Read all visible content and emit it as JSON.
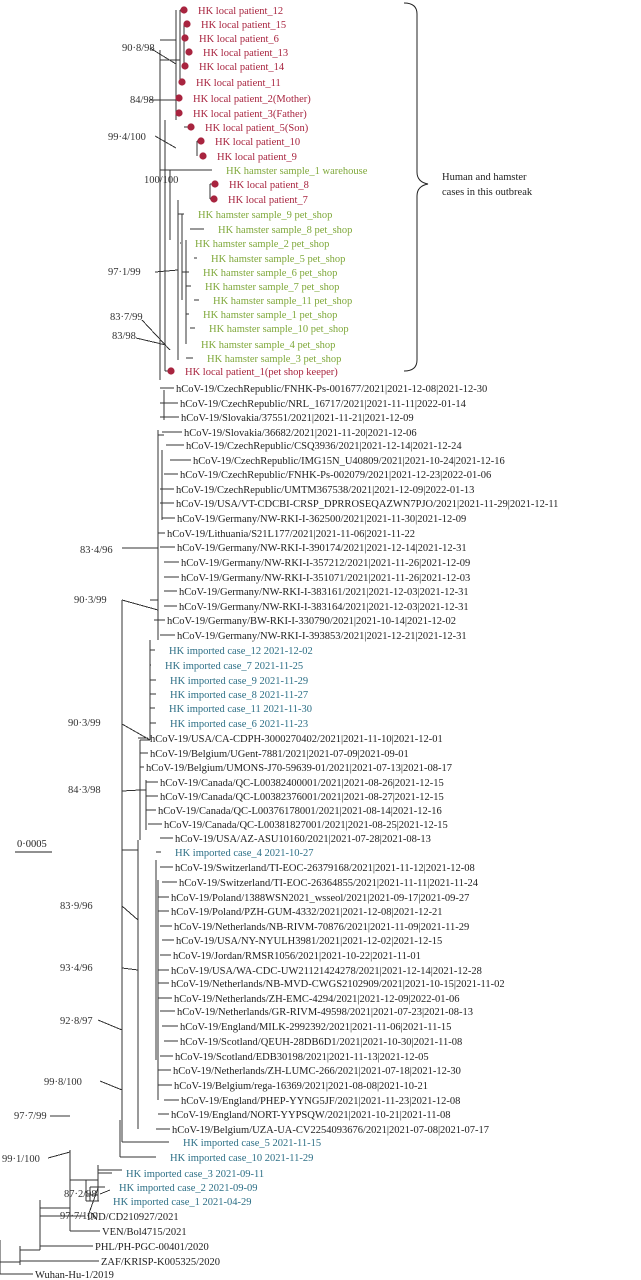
{
  "colors": {
    "patient": "#a8243f",
    "hamster": "#7fa83a",
    "imported": "#2d6f86",
    "reference": "#222222",
    "branch": "#333333"
  },
  "scale_bar_label": "0·0005",
  "outbreak_annotation": [
    "Human and hamster",
    "cases in this outbreak"
  ],
  "leaves": [
    {
      "label": "HK local patient_12",
      "kind": "patient"
    },
    {
      "label": "HK local patient_15",
      "kind": "patient"
    },
    {
      "label": "HK local patient_6",
      "kind": "patient"
    },
    {
      "label": "HK local patient_13",
      "kind": "patient"
    },
    {
      "label": "HK local patient_14",
      "kind": "patient"
    },
    {
      "label": "HK local patient_11",
      "kind": "patient"
    },
    {
      "label": "HK local patient_2(Mother)",
      "kind": "patient"
    },
    {
      "label": "HK local patient_3(Father)",
      "kind": "patient"
    },
    {
      "label": "HK local patient_5(Son)",
      "kind": "patient"
    },
    {
      "label": "HK local patient_10",
      "kind": "patient"
    },
    {
      "label": "HK local patient_9",
      "kind": "patient"
    },
    {
      "label": "HK hamster sample_1 warehouse",
      "kind": "hamster"
    },
    {
      "label": "HK local patient_8",
      "kind": "patient"
    },
    {
      "label": "HK local patient_7",
      "kind": "patient"
    },
    {
      "label": "HK hamster sample_9 pet_shop",
      "kind": "hamster"
    },
    {
      "label": "HK hamster sample_8 pet_shop",
      "kind": "hamster"
    },
    {
      "label": "HK hamster sample_2 pet_shop",
      "kind": "hamster"
    },
    {
      "label": "HK hamster sample_5 pet_shop",
      "kind": "hamster"
    },
    {
      "label": "HK hamster sample_6 pet_shop",
      "kind": "hamster"
    },
    {
      "label": "HK hamster sample_7 pet_shop",
      "kind": "hamster"
    },
    {
      "label": "HK hamster sample_11 pet_shop",
      "kind": "hamster"
    },
    {
      "label": "HK hamster sample_1 pet_shop",
      "kind": "hamster"
    },
    {
      "label": "HK hamster sample_10 pet_shop",
      "kind": "hamster"
    },
    {
      "label": "HK hamster sample_4 pet_shop",
      "kind": "hamster"
    },
    {
      "label": "HK hamster sample_3 pet_shop",
      "kind": "hamster"
    },
    {
      "label": "HK local patient_1(pet shop keeper)",
      "kind": "patient"
    },
    {
      "label": "hCoV-19/CzechRepublic/FNHK-Ps-001677/2021|2021-12-08|2021-12-30",
      "kind": "reference"
    },
    {
      "label": "hCoV-19/CzechRepublic/NRL_16717/2021|2021-11-11|2022-01-14",
      "kind": "reference"
    },
    {
      "label": "hCoV-19/Slovakia/37551/2021|2021-11-21|2021-12-09",
      "kind": "reference"
    },
    {
      "label": "hCoV-19/Slovakia/36682/2021|2021-11-20|2021-12-06",
      "kind": "reference"
    },
    {
      "label": "hCoV-19/CzechRepublic/CSQ3936/2021|2021-12-14|2021-12-24",
      "kind": "reference"
    },
    {
      "label": "hCoV-19/CzechRepublic/IMG15N_U40809/2021|2021-10-24|2021-12-16",
      "kind": "reference"
    },
    {
      "label": "hCoV-19/CzechRepublic/FNHK-Ps-002079/2021|2021-12-23|2022-01-06",
      "kind": "reference"
    },
    {
      "label": "hCoV-19/CzechRepublic/UMTM367538/2021|2021-12-09|2022-01-13",
      "kind": "reference"
    },
    {
      "label": "hCoV-19/USA/VT-CDCBI-CRSP_DPRROSEQAZWN7PJO/2021|2021-11-29|2021-12-11",
      "kind": "reference"
    },
    {
      "label": "hCoV-19/Germany/NW-RKI-I-362500/2021|2021-11-30|2021-12-09",
      "kind": "reference"
    },
    {
      "label": "hCoV-19/Lithuania/S21L177/2021|2021-11-06|2021-11-22",
      "kind": "reference"
    },
    {
      "label": "hCoV-19/Germany/NW-RKI-I-390174/2021|2021-12-14|2021-12-31",
      "kind": "reference"
    },
    {
      "label": "hCoV-19/Germany/NW-RKI-I-357212/2021|2021-11-26|2021-12-09",
      "kind": "reference"
    },
    {
      "label": "hCoV-19/Germany/NW-RKI-I-351071/2021|2021-11-26|2021-12-03",
      "kind": "reference"
    },
    {
      "label": "hCoV-19/Germany/NW-RKI-I-383161/2021|2021-12-03|2021-12-31",
      "kind": "reference"
    },
    {
      "label": "hCoV-19/Germany/NW-RKI-I-383164/2021|2021-12-03|2021-12-31",
      "kind": "reference"
    },
    {
      "label": "hCoV-19/Germany/BW-RKI-I-330790/2021|2021-10-14|2021-12-02",
      "kind": "reference"
    },
    {
      "label": "hCoV-19/Germany/NW-RKI-I-393853/2021|2021-12-21|2021-12-31",
      "kind": "reference"
    },
    {
      "label": "HK imported case_12 2021-12-02",
      "kind": "imported"
    },
    {
      "label": "HK imported case_7 2021-11-25",
      "kind": "imported"
    },
    {
      "label": "HK imported case_9 2021-11-29",
      "kind": "imported"
    },
    {
      "label": "HK imported case_8 2021-11-27",
      "kind": "imported"
    },
    {
      "label": "HK imported case_11 2021-11-30",
      "kind": "imported"
    },
    {
      "label": "HK imported case_6 2021-11-23",
      "kind": "imported"
    },
    {
      "label": "hCoV-19/USA/CA-CDPH-3000270402/2021|2021-11-10|2021-12-01",
      "kind": "reference"
    },
    {
      "label": "hCoV-19/Belgium/UGent-7881/2021|2021-07-09|2021-09-01",
      "kind": "reference"
    },
    {
      "label": "hCoV-19/Belgium/UMONS-J70-59639-01/2021|2021-07-13|2021-08-17",
      "kind": "reference"
    },
    {
      "label": "hCoV-19/Canada/QC-L00382400001/2021|2021-08-26|2021-12-15",
      "kind": "reference"
    },
    {
      "label": "hCoV-19/Canada/QC-L00382376001/2021|2021-08-27|2021-12-15",
      "kind": "reference"
    },
    {
      "label": "hCoV-19/Canada/QC-L00376178001/2021|2021-08-14|2021-12-16",
      "kind": "reference"
    },
    {
      "label": "hCoV-19/Canada/QC-L00381827001/2021|2021-08-25|2021-12-15",
      "kind": "reference"
    },
    {
      "label": "hCoV-19/USA/AZ-ASU10160/2021|2021-07-28|2021-08-13",
      "kind": "reference"
    },
    {
      "label": "HK imported case_4 2021-10-27",
      "kind": "imported"
    },
    {
      "label": "hCoV-19/Switzerland/TI-EOC-26379168/2021|2021-11-12|2021-12-08",
      "kind": "reference"
    },
    {
      "label": "hCoV-19/Switzerland/TI-EOC-26364855/2021|2021-11-11|2021-11-24",
      "kind": "reference"
    },
    {
      "label": "hCoV-19/Poland/1388WSN2021_wsseol/2021|2021-09-17|2021-09-27",
      "kind": "reference"
    },
    {
      "label": "hCoV-19/Poland/PZH-GUM-4332/2021|2021-12-08|2021-12-21",
      "kind": "reference"
    },
    {
      "label": "hCoV-19/Netherlands/NB-RIVM-70876/2021|2021-11-09|2021-11-29",
      "kind": "reference"
    },
    {
      "label": "hCoV-19/USA/NY-NYULH3981/2021|2021-12-02|2021-12-15",
      "kind": "reference"
    },
    {
      "label": "hCoV-19/Jordan/RMSR1056/2021|2021-10-22|2021-11-01",
      "kind": "reference"
    },
    {
      "label": "hCoV-19/USA/WA-CDC-UW21121424278/2021|2021-12-14|2021-12-28",
      "kind": "reference"
    },
    {
      "label": "hCoV-19/Netherlands/NB-MVD-CWGS2102909/2021|2021-10-15|2021-11-02",
      "kind": "reference"
    },
    {
      "label": "hCoV-19/Netherlands/ZH-EMC-4294/2021|2021-12-09|2022-01-06",
      "kind": "reference"
    },
    {
      "label": "hCoV-19/Netherlands/GR-RIVM-49598/2021|2021-07-23|2021-08-13",
      "kind": "reference"
    },
    {
      "label": "hCoV-19/England/MILK-2992392/2021|2021-11-06|2021-11-15",
      "kind": "reference"
    },
    {
      "label": "hCoV-19/Scotland/QEUH-28DB6D1/2021|2021-10-30|2021-11-08",
      "kind": "reference"
    },
    {
      "label": "hCoV-19/Scotland/EDB30198/2021|2021-11-13|2021-12-05",
      "kind": "reference"
    },
    {
      "label": "hCoV-19/Netherlands/ZH-LUMC-266/2021|2021-07-18|2021-12-30",
      "kind": "reference"
    },
    {
      "label": "hCoV-19/Belgium/rega-16369/2021|2021-08-08|2021-10-21",
      "kind": "reference"
    },
    {
      "label": "hCoV-19/England/PHEP-YYNG5JF/2021|2021-11-23|2021-12-08",
      "kind": "reference"
    },
    {
      "label": "hCoV-19/England/NORT-YYPSQW/2021|2021-10-21|2021-11-08",
      "kind": "reference"
    },
    {
      "label": "hCoV-19/Belgium/UZA-UA-CV2254093676/2021|2021-07-08|2021-07-17",
      "kind": "reference"
    },
    {
      "label": "HK imported case_5 2021-11-15",
      "kind": "imported"
    },
    {
      "label": "HK imported case_10 2021-11-29",
      "kind": "imported"
    },
    {
      "label": "HK imported case_3 2021-09-11",
      "kind": "imported"
    },
    {
      "label": "HK imported case_2 2021-09-09",
      "kind": "imported"
    },
    {
      "label": "HK imported case_1 2021-04-29",
      "kind": "imported"
    },
    {
      "label": "IND/CD210927/2021",
      "kind": "reference"
    },
    {
      "label": "VEN/Bol4715/2021",
      "kind": "reference"
    },
    {
      "label": "PHL/PH-PGC-00401/2020",
      "kind": "reference"
    },
    {
      "label": "ZAF/KRISP-K005325/2020",
      "kind": "reference"
    },
    {
      "label": "Wuhan-Hu-1/2019",
      "kind": "reference"
    }
  ],
  "bootstrap_labels": [
    "90·8/98",
    "84/98",
    "99·4/100",
    "100/100",
    "97·1/99",
    "83·7/99",
    "83/98",
    "83·4/96",
    "90·3/99",
    "90·3/99",
    "84·3/98",
    "83·9/96",
    "93·4/96",
    "92·8/97",
    "99·8/100",
    "97·7/99",
    "99·1/100",
    "87·2/98",
    "97·7/100"
  ]
}
